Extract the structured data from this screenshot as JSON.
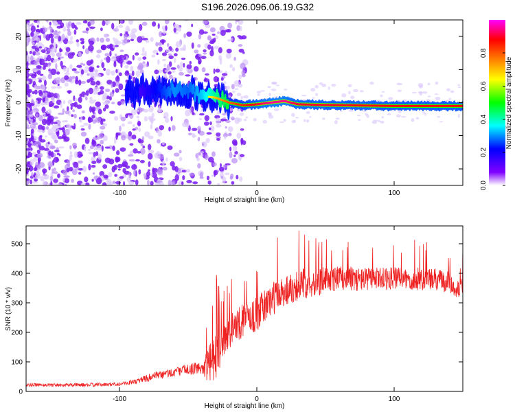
{
  "title": "S196.2026.096.06.19.G32",
  "chart_data": [
    {
      "type": "heatmap",
      "xlabel": "Height of straight line (km)",
      "ylabel": "Frequency (Hz)",
      "xlim": [
        -168,
        150
      ],
      "ylim": [
        -25,
        25
      ],
      "xticks": [
        -100,
        0,
        100
      ],
      "yticks": [
        -20,
        -10,
        0,
        10,
        20
      ],
      "colorbar": {
        "label": "Normalized spectral amplitude",
        "range": [
          0,
          1
        ],
        "ticks": [
          0.0,
          0.2,
          0.4,
          0.6,
          0.8
        ],
        "tick_labels": [
          "0.0",
          "0.2",
          "0.4",
          "0.6",
          "0.8"
        ],
        "colors": [
          "#ffffff",
          "#8000ff",
          "#0000ff",
          "#00ffff",
          "#00ff00",
          "#ffff00",
          "#ff8000",
          "#ff0000",
          "#ff00ff"
        ]
      },
      "ridge": {
        "x": [
          -90,
          -80,
          -70,
          -60,
          -50,
          -40,
          -30,
          -20,
          -10,
          0,
          10,
          20,
          30,
          50,
          100,
          150
        ],
        "y": [
          3,
          4,
          3.5,
          4,
          3.5,
          2,
          1.5,
          0,
          -0.8,
          -0.5,
          0,
          0.5,
          -0.5,
          -0.7,
          -1,
          -1
        ],
        "amplitude": [
          0.2,
          0.3,
          0.4,
          0.5,
          0.45,
          0.55,
          0.7,
          0.8,
          0.85,
          0.9,
          0.95,
          0.95,
          0.9,
          0.9,
          0.88,
          0.88
        ]
      }
    },
    {
      "type": "line",
      "series": [
        {
          "name": "SNR",
          "color": "#ee2222",
          "x": [
            -168,
            -150,
            -130,
            -110,
            -100,
            -90,
            -80,
            -70,
            -60,
            -50,
            -40,
            -35,
            -30,
            -25,
            -20,
            -10,
            0,
            10,
            20,
            30,
            40,
            50,
            60,
            70,
            80,
            90,
            100,
            110,
            120,
            130,
            140,
            145,
            150
          ],
          "y": [
            22,
            22,
            22,
            23,
            25,
            32,
            45,
            55,
            65,
            75,
            80,
            90,
            120,
            160,
            200,
            240,
            260,
            310,
            340,
            360,
            370,
            375,
            385,
            380,
            380,
            382,
            382,
            380,
            380,
            378,
            370,
            340,
            360
          ],
          "peak_envelope": [
            35,
            35,
            35,
            40,
            45,
            60,
            90,
            110,
            120,
            140,
            160,
            320,
            400,
            380,
            420,
            440,
            470,
            520,
            540,
            550,
            550,
            540,
            530,
            530,
            520,
            520,
            520,
            520,
            520,
            520,
            500,
            440,
            470
          ]
        }
      ],
      "xlabel": "Height of straight line (km)",
      "ylabel": "SNR (10 * v/v)",
      "xlim": [
        -168,
        150
      ],
      "ylim": [
        0,
        560
      ],
      "xticks": [
        -100,
        0,
        100
      ],
      "yticks": [
        0,
        100,
        200,
        300,
        400,
        500
      ]
    }
  ]
}
